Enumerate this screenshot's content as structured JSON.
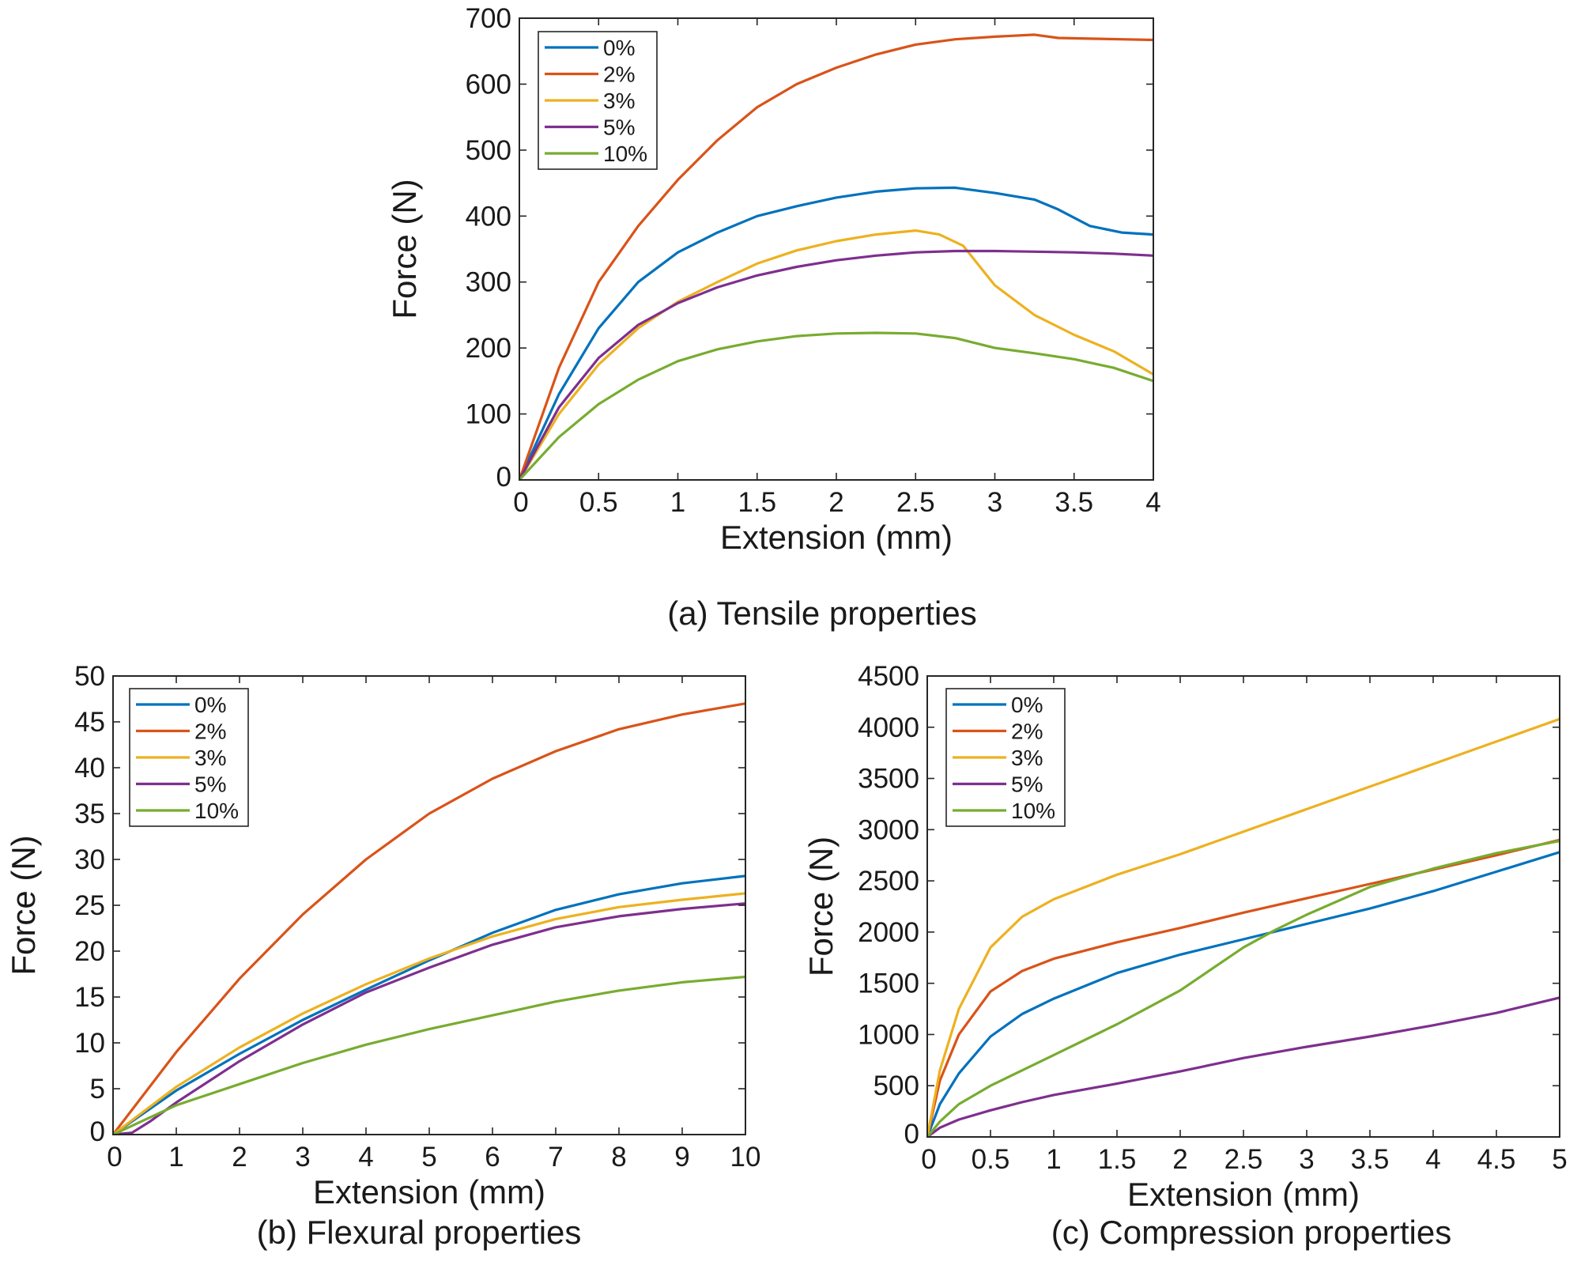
{
  "colors": {
    "0%": "#0072bd",
    "2%": "#d95319",
    "3%": "#edb120",
    "5%": "#7e2f8e",
    "10%": "#77ac30"
  },
  "chart_data": [
    {
      "id": "tensile",
      "type": "line",
      "caption": "(a) Tensile properties",
      "xlabel": "Extension (mm)",
      "ylabel": "Force (N)",
      "xlim": [
        0,
        4
      ],
      "ylim": [
        0,
        700
      ],
      "xticks": [
        0,
        0.5,
        1,
        1.5,
        2,
        2.5,
        3,
        3.5,
        4
      ],
      "yticks": [
        0,
        100,
        200,
        300,
        400,
        500,
        600,
        700
      ],
      "grid": false,
      "legend": "top-left",
      "series": [
        {
          "name": "0%",
          "x": [
            0,
            0.25,
            0.5,
            0.75,
            1,
            1.25,
            1.5,
            1.75,
            2,
            2.25,
            2.5,
            2.75,
            3,
            3.25,
            3.4,
            3.6,
            3.8,
            4
          ],
          "y": [
            0,
            130,
            230,
            300,
            345,
            375,
            400,
            415,
            428,
            437,
            442,
            443,
            435,
            425,
            410,
            385,
            375,
            372
          ]
        },
        {
          "name": "2%",
          "x": [
            0,
            0.25,
            0.5,
            0.75,
            1,
            1.25,
            1.5,
            1.75,
            2,
            2.25,
            2.5,
            2.75,
            3,
            3.25,
            3.4,
            3.6,
            3.8,
            4
          ],
          "y": [
            0,
            170,
            300,
            385,
            455,
            515,
            565,
            600,
            625,
            645,
            660,
            668,
            672,
            675,
            670,
            669,
            668,
            667
          ]
        },
        {
          "name": "3%",
          "x": [
            0,
            0.25,
            0.5,
            0.75,
            1,
            1.25,
            1.5,
            1.75,
            2,
            2.25,
            2.5,
            2.65,
            2.8,
            2.9,
            3,
            3.25,
            3.5,
            3.75,
            4
          ],
          "y": [
            0,
            100,
            175,
            230,
            270,
            300,
            328,
            348,
            362,
            372,
            378,
            372,
            355,
            325,
            295,
            250,
            220,
            195,
            160
          ]
        },
        {
          "name": "5%",
          "x": [
            0,
            0.25,
            0.5,
            0.75,
            1,
            1.25,
            1.5,
            1.75,
            2,
            2.25,
            2.5,
            2.75,
            3,
            3.25,
            3.5,
            3.75,
            4
          ],
          "y": [
            0,
            110,
            185,
            235,
            268,
            292,
            310,
            323,
            333,
            340,
            345,
            347,
            347,
            346,
            345,
            343,
            340
          ]
        },
        {
          "name": "10%",
          "x": [
            0,
            0.25,
            0.5,
            0.75,
            1,
            1.25,
            1.5,
            1.75,
            2,
            2.25,
            2.5,
            2.75,
            3,
            3.25,
            3.5,
            3.75,
            4
          ],
          "y": [
            0,
            65,
            115,
            152,
            180,
            198,
            210,
            218,
            222,
            223,
            222,
            215,
            200,
            192,
            183,
            170,
            150
          ]
        }
      ]
    },
    {
      "id": "flexural",
      "type": "line",
      "caption": "(b) Flexural properties",
      "xlabel": "Extension (mm)",
      "ylabel": "Force (N)",
      "xlim": [
        0,
        10
      ],
      "ylim": [
        0,
        50
      ],
      "xticks": [
        0,
        1,
        2,
        3,
        4,
        5,
        6,
        7,
        8,
        9,
        10
      ],
      "yticks": [
        0,
        5,
        10,
        15,
        20,
        25,
        30,
        35,
        40,
        45,
        50
      ],
      "grid": false,
      "legend": "top-left",
      "series": [
        {
          "name": "0%",
          "x": [
            0,
            1,
            2,
            3,
            4,
            5,
            6,
            7,
            8,
            9,
            10
          ],
          "y": [
            0,
            4.8,
            8.8,
            12.5,
            15.8,
            19,
            22,
            24.5,
            26.2,
            27.4,
            28.2
          ]
        },
        {
          "name": "2%",
          "x": [
            0,
            1,
            2,
            3,
            4,
            5,
            6,
            7,
            8,
            9,
            10
          ],
          "y": [
            0,
            9,
            17,
            24,
            30,
            35,
            38.8,
            41.8,
            44.2,
            45.8,
            47
          ]
        },
        {
          "name": "3%",
          "x": [
            0,
            1,
            2,
            3,
            4,
            5,
            6,
            7,
            8,
            9,
            10
          ],
          "y": [
            0,
            5.2,
            9.5,
            13.2,
            16.4,
            19.2,
            21.6,
            23.5,
            24.8,
            25.6,
            26.3
          ]
        },
        {
          "name": "5%",
          "x": [
            0,
            0.3,
            0.6,
            1,
            2,
            3,
            4,
            5,
            6,
            7,
            8,
            9,
            10
          ],
          "y": [
            0,
            0.2,
            1.5,
            3.5,
            8,
            12,
            15.5,
            18.2,
            20.7,
            22.6,
            23.8,
            24.6,
            25.2
          ]
        },
        {
          "name": "10%",
          "x": [
            0,
            1,
            2,
            3,
            4,
            5,
            6,
            7,
            8,
            9,
            10
          ],
          "y": [
            0,
            3.2,
            5.5,
            7.8,
            9.8,
            11.5,
            13,
            14.5,
            15.7,
            16.6,
            17.2
          ]
        }
      ]
    },
    {
      "id": "compression",
      "type": "line",
      "caption": "(c) Compression properties",
      "xlabel": "Extension (mm)",
      "ylabel": "Force (N)",
      "xlim": [
        0,
        5
      ],
      "ylim": [
        0,
        4500
      ],
      "xticks": [
        0,
        0.5,
        1,
        1.5,
        2,
        2.5,
        3,
        3.5,
        4,
        4.5,
        5
      ],
      "yticks": [
        0,
        500,
        1000,
        1500,
        2000,
        2500,
        3000,
        3500,
        4000,
        4500
      ],
      "grid": false,
      "legend": "top-left",
      "series": [
        {
          "name": "0%",
          "x": [
            0,
            0.1,
            0.25,
            0.5,
            0.75,
            1,
            1.5,
            2,
            2.5,
            3,
            3.5,
            4,
            4.5,
            5
          ],
          "y": [
            0,
            320,
            620,
            980,
            1200,
            1350,
            1600,
            1780,
            1930,
            2080,
            2230,
            2400,
            2590,
            2780
          ]
        },
        {
          "name": "2%",
          "x": [
            0,
            0.1,
            0.25,
            0.5,
            0.75,
            1,
            1.5,
            2,
            2.5,
            3,
            3.5,
            4,
            4.5,
            5
          ],
          "y": [
            0,
            550,
            1000,
            1420,
            1620,
            1740,
            1900,
            2040,
            2190,
            2330,
            2470,
            2610,
            2750,
            2900
          ]
        },
        {
          "name": "3%",
          "x": [
            0,
            0.1,
            0.25,
            0.5,
            0.75,
            1,
            1.5,
            2,
            2.5,
            3,
            3.5,
            4,
            4.5,
            5
          ],
          "y": [
            0,
            650,
            1250,
            1850,
            2150,
            2320,
            2560,
            2760,
            2980,
            3200,
            3420,
            3640,
            3860,
            4080
          ]
        },
        {
          "name": "5%",
          "x": [
            0,
            0.1,
            0.25,
            0.5,
            0.75,
            1,
            1.5,
            2,
            2.5,
            3,
            3.5,
            4,
            4.5,
            5
          ],
          "y": [
            0,
            90,
            170,
            260,
            340,
            410,
            520,
            640,
            770,
            880,
            980,
            1090,
            1210,
            1360
          ]
        },
        {
          "name": "10%",
          "x": [
            0,
            0.1,
            0.25,
            0.5,
            0.75,
            1,
            1.5,
            2,
            2.5,
            2.75,
            3,
            3.5,
            4,
            4.5,
            5
          ],
          "y": [
            0,
            150,
            320,
            500,
            650,
            800,
            1100,
            1430,
            1850,
            2020,
            2170,
            2440,
            2620,
            2770,
            2890
          ]
        }
      ]
    }
  ]
}
